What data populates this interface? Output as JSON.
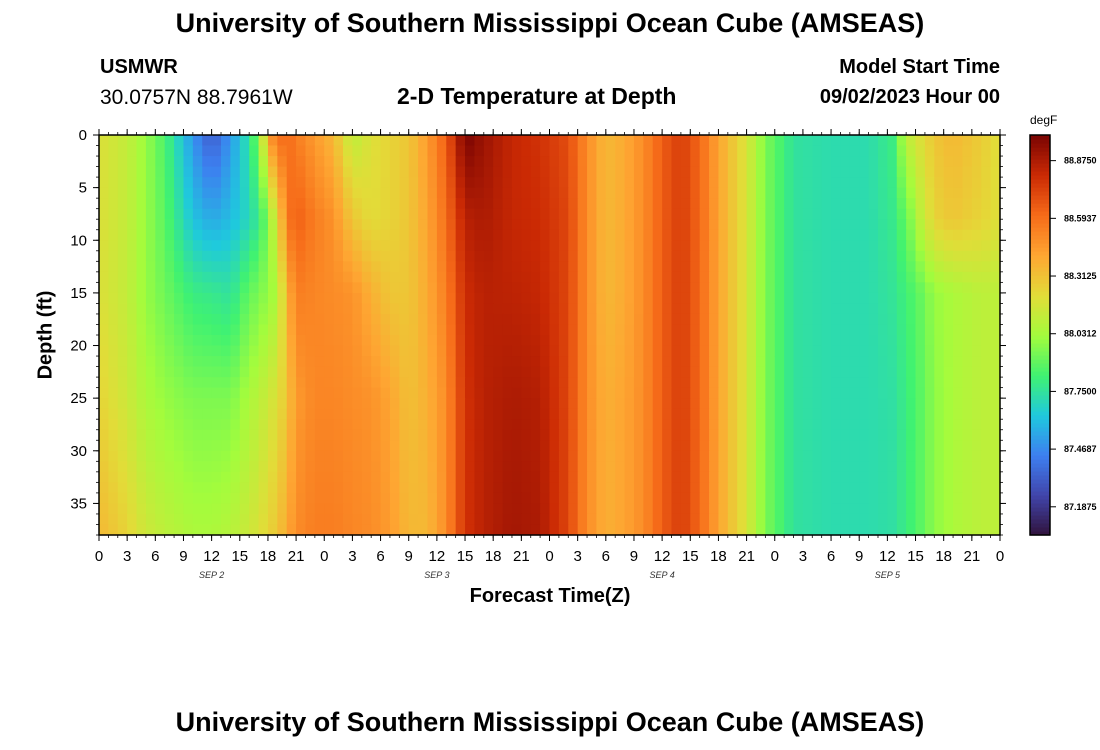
{
  "header": {
    "title": "University of Southern Mississippi Ocean Cube (AMSEAS)",
    "station": "USMWR",
    "coords": "30.0757N  88.7961W",
    "subtitle": "2-D Temperature at Depth",
    "start_label": "Model Start Time",
    "start_value": "09/02/2023 Hour 00"
  },
  "footer": {
    "title": "University of Southern Mississippi Ocean Cube (AMSEAS)"
  },
  "colors": {
    "stops": [
      "#30123b",
      "#4145ab",
      "#3d7ff0",
      "#1fc9dd",
      "#40f271",
      "#a4fc3c",
      "#e2dc38",
      "#fea632",
      "#f66b19",
      "#cb2a04",
      "#7a0403"
    ]
  },
  "chart_data": {
    "type": "heatmap",
    "title": "2-D Temperature at Depth",
    "xlabel": "Forecast Time(Z)",
    "ylabel": "Depth (ft)",
    "x_range_hours": [
      0,
      96
    ],
    "ylim": [
      0,
      38
    ],
    "y_inverted": true,
    "x_tick_labels": [
      "0",
      "3",
      "6",
      "9",
      "12",
      "15",
      "18",
      "21",
      "0",
      "3",
      "6",
      "9",
      "12",
      "15",
      "18",
      "21",
      "0",
      "3",
      "6",
      "9",
      "12",
      "15",
      "18",
      "21",
      "0",
      "3",
      "6",
      "9",
      "12",
      "15",
      "18",
      "21",
      "0"
    ],
    "y_tick_values": [
      0,
      5,
      10,
      15,
      20,
      25,
      30,
      35
    ],
    "day_labels": [
      {
        "label": "SEP 2",
        "hour": 12
      },
      {
        "label": "SEP 3",
        "hour": 36
      },
      {
        "label": "SEP 4",
        "hour": 60
      },
      {
        "label": "SEP 5",
        "hour": 84
      }
    ],
    "colorbar": {
      "unit": "degF",
      "min": 87.05,
      "max": 89.0,
      "ticks": [
        88.875,
        88.5937,
        88.3125,
        88.0312,
        87.75,
        87.4687,
        87.1875
      ],
      "tick_labels": [
        "88.8750",
        "88.5937",
        "88.3125",
        "88.0312",
        "87.7500",
        "87.4687",
        "87.1875"
      ]
    },
    "depths": [
      0,
      8,
      15,
      25,
      38
    ],
    "profiles": [
      {
        "hour": 0,
        "temps": [
          88.2,
          88.2,
          88.2,
          88.25,
          88.35
        ]
      },
      {
        "hour": 3,
        "temps": [
          88.12,
          88.12,
          88.12,
          88.15,
          88.25
        ]
      },
      {
        "hour": 5,
        "temps": [
          88.0,
          88.0,
          88.0,
          88.05,
          88.15
        ]
      },
      {
        "hour": 7,
        "temps": [
          87.85,
          87.88,
          87.92,
          88.0,
          88.1
        ]
      },
      {
        "hour": 10,
        "temps": [
          87.5,
          87.62,
          87.8,
          87.95,
          88.05
        ]
      },
      {
        "hour": 12,
        "temps": [
          87.32,
          87.55,
          87.78,
          87.95,
          88.05
        ]
      },
      {
        "hour": 14,
        "temps": [
          87.5,
          87.6,
          87.75,
          87.95,
          88.08
        ]
      },
      {
        "hour": 16,
        "temps": [
          87.75,
          87.7,
          87.9,
          88.05,
          88.15
        ]
      },
      {
        "hour": 17.2,
        "temps": [
          88.0,
          87.8,
          87.95,
          88.1,
          88.2
        ]
      },
      {
        "hour": 18,
        "temps": [
          88.45,
          87.98,
          88.0,
          88.15,
          88.25
        ]
      },
      {
        "hour": 19,
        "temps": [
          88.58,
          88.2,
          88.05,
          88.2,
          88.3
        ]
      },
      {
        "hour": 20,
        "temps": [
          88.62,
          88.55,
          88.35,
          88.3,
          88.4
        ]
      },
      {
        "hour": 21,
        "temps": [
          88.55,
          88.65,
          88.55,
          88.45,
          88.5
        ]
      },
      {
        "hour": 23,
        "temps": [
          88.45,
          88.55,
          88.52,
          88.52,
          88.55
        ]
      },
      {
        "hour": 25,
        "temps": [
          88.35,
          88.48,
          88.5,
          88.52,
          88.55
        ]
      },
      {
        "hour": 27,
        "temps": [
          88.1,
          88.3,
          88.48,
          88.5,
          88.52
        ]
      },
      {
        "hour": 29,
        "temps": [
          88.2,
          88.22,
          88.38,
          88.48,
          88.5
        ]
      },
      {
        "hour": 31,
        "temps": [
          88.25,
          88.25,
          88.3,
          88.42,
          88.45
        ]
      },
      {
        "hour": 33,
        "temps": [
          88.3,
          88.3,
          88.3,
          88.32,
          88.35
        ]
      },
      {
        "hour": 35,
        "temps": [
          88.45,
          88.42,
          88.4,
          88.38,
          88.35
        ]
      },
      {
        "hour": 37,
        "temps": [
          88.65,
          88.6,
          88.55,
          88.5,
          88.5
        ]
      },
      {
        "hour": 39,
        "temps": [
          89.0,
          88.85,
          88.8,
          88.78,
          88.78
        ]
      },
      {
        "hour": 41,
        "temps": [
          88.92,
          88.88,
          88.85,
          88.85,
          88.85
        ]
      },
      {
        "hour": 44,
        "temps": [
          88.82,
          88.82,
          88.84,
          88.88,
          88.9
        ]
      },
      {
        "hour": 47,
        "temps": [
          88.78,
          88.8,
          88.82,
          88.86,
          88.88
        ]
      },
      {
        "hour": 50,
        "temps": [
          88.7,
          88.72,
          88.72,
          88.72,
          88.72
        ]
      },
      {
        "hour": 52,
        "temps": [
          88.5,
          88.5,
          88.5,
          88.5,
          88.5
        ]
      },
      {
        "hour": 54,
        "temps": [
          88.35,
          88.35,
          88.35,
          88.38,
          88.38
        ]
      },
      {
        "hour": 56,
        "temps": [
          88.4,
          88.4,
          88.4,
          88.42,
          88.42
        ]
      },
      {
        "hour": 58,
        "temps": [
          88.5,
          88.5,
          88.5,
          88.5,
          88.5
        ]
      },
      {
        "hour": 60,
        "temps": [
          88.65,
          88.65,
          88.65,
          88.65,
          88.65
        ]
      },
      {
        "hour": 62,
        "temps": [
          88.75,
          88.75,
          88.75,
          88.75,
          88.75
        ]
      },
      {
        "hour": 64,
        "temps": [
          88.62,
          88.62,
          88.62,
          88.62,
          88.62
        ]
      },
      {
        "hour": 66,
        "temps": [
          88.42,
          88.42,
          88.42,
          88.42,
          88.42
        ]
      },
      {
        "hour": 67.5,
        "temps": [
          88.3,
          88.3,
          88.3,
          88.3,
          88.3
        ]
      },
      {
        "hour": 69,
        "temps": [
          88.18,
          88.18,
          88.18,
          88.18,
          88.18
        ]
      },
      {
        "hour": 71,
        "temps": [
          87.95,
          87.95,
          87.95,
          87.95,
          87.95
        ]
      },
      {
        "hour": 74,
        "temps": [
          87.75,
          87.75,
          87.75,
          87.75,
          87.75
        ]
      },
      {
        "hour": 78,
        "temps": [
          87.72,
          87.72,
          87.72,
          87.72,
          87.72
        ]
      },
      {
        "hour": 82,
        "temps": [
          87.72,
          87.72,
          87.72,
          87.72,
          87.72
        ]
      },
      {
        "hour": 84.5,
        "temps": [
          87.8,
          87.78,
          87.76,
          87.74,
          87.74
        ]
      },
      {
        "hour": 86,
        "temps": [
          88.1,
          87.9,
          87.82,
          87.8,
          87.8
        ]
      },
      {
        "hour": 87.5,
        "temps": [
          88.2,
          88.1,
          87.9,
          87.88,
          87.88
        ]
      },
      {
        "hour": 89,
        "temps": [
          88.3,
          88.25,
          88.0,
          87.98,
          87.98
        ]
      },
      {
        "hour": 91,
        "temps": [
          88.35,
          88.3,
          88.05,
          88.05,
          88.05
        ]
      },
      {
        "hour": 94,
        "temps": [
          88.28,
          88.25,
          88.1,
          88.1,
          88.1
        ]
      },
      {
        "hour": 96,
        "temps": [
          88.2,
          88.2,
          88.1,
          88.1,
          88.1
        ]
      }
    ]
  }
}
